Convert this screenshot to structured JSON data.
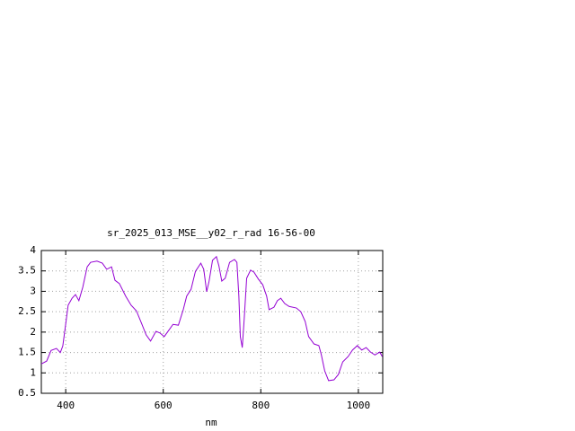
{
  "chart_data": {
    "type": "line",
    "title": "sr_2025_013_MSE__y02_r_rad 16-56-00",
    "x_label": "nm",
    "xlim": [
      350,
      1050
    ],
    "xticks": [
      400,
      600,
      800,
      1000
    ],
    "ylim": [
      0.5,
      4
    ],
    "yticks": [
      0.5,
      1,
      1.5,
      2,
      2.5,
      3,
      3.5,
      4
    ],
    "grid": true,
    "x": [
      350,
      361,
      370,
      381,
      389,
      394,
      400,
      405,
      413,
      420,
      427,
      435,
      444,
      451,
      464,
      475,
      484,
      494,
      501,
      510,
      523,
      534,
      545,
      556,
      565,
      574,
      585,
      593,
      602,
      611,
      620,
      631,
      641,
      648,
      657,
      666,
      677,
      683,
      689,
      694,
      701,
      709,
      714,
      720,
      727,
      736,
      746,
      751,
      755,
      758,
      762,
      766,
      771,
      779,
      786,
      795,
      804,
      812,
      817,
      827,
      834,
      841,
      849,
      858,
      873,
      882,
      891,
      898,
      909,
      919,
      924,
      931,
      939,
      950,
      959,
      968,
      979,
      988,
      998,
      1007,
      1016,
      1025,
      1034,
      1044,
      1049
    ],
    "series": [
      {
        "color": "#9400d3",
        "values": [
          1.22,
          1.29,
          1.55,
          1.6,
          1.5,
          1.66,
          2.2,
          2.66,
          2.83,
          2.92,
          2.77,
          3.1,
          3.6,
          3.71,
          3.74,
          3.69,
          3.54,
          3.6,
          3.27,
          3.19,
          2.88,
          2.66,
          2.52,
          2.2,
          1.93,
          1.78,
          2.02,
          1.98,
          1.89,
          2.04,
          2.19,
          2.17,
          2.55,
          2.88,
          3.05,
          3.49,
          3.69,
          3.54,
          2.99,
          3.25,
          3.76,
          3.85,
          3.63,
          3.25,
          3.32,
          3.71,
          3.78,
          3.71,
          2.88,
          1.89,
          1.62,
          2.33,
          3.32,
          3.52,
          3.47,
          3.3,
          3.16,
          2.88,
          2.55,
          2.61,
          2.77,
          2.83,
          2.7,
          2.63,
          2.59,
          2.5,
          2.26,
          1.89,
          1.71,
          1.67,
          1.45,
          1.05,
          0.81,
          0.83,
          0.96,
          1.27,
          1.4,
          1.56,
          1.67,
          1.56,
          1.62,
          1.51,
          1.44,
          1.51,
          1.4
        ]
      }
    ]
  }
}
